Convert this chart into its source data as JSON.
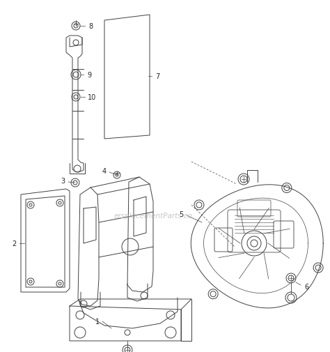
{
  "bg_color": "#ffffff",
  "line_color": "#404040",
  "label_color": "#222222",
  "figsize": [
    4.74,
    5.06
  ],
  "dpi": 100,
  "watermark": "ersplacementParts.co",
  "watermark_color": "#b0b0b0",
  "label_fontsize": 7.0
}
